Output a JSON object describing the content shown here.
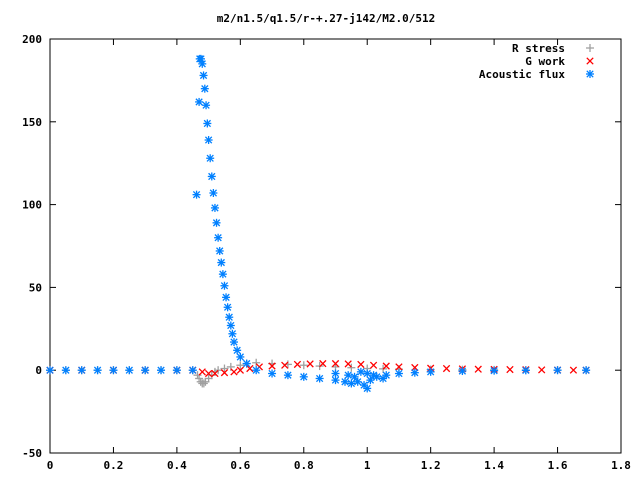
{
  "chart_data": {
    "type": "scatter",
    "title": "m2/n1.5/q1.5/r-+.27-j142/M2.0/512",
    "xlabel": "",
    "ylabel": "",
    "xlim": [
      0,
      1.8
    ],
    "ylim": [
      -50,
      200
    ],
    "xticks": [
      "0",
      "0.2",
      "0.4",
      "0.6",
      "0.8",
      "1",
      "1.2",
      "1.4",
      "1.6",
      "1.8"
    ],
    "yticks": [
      "-50",
      "0",
      "50",
      "100",
      "150",
      "200"
    ],
    "grid": false,
    "legend_position": "top-right",
    "series": [
      {
        "name": "R stress",
        "marker": "plus",
        "color": "#a0a0a0",
        "x": [
          0.0,
          0.05,
          0.1,
          0.15,
          0.2,
          0.25,
          0.3,
          0.35,
          0.4,
          0.45,
          0.465,
          0.47,
          0.475,
          0.48,
          0.485,
          0.49,
          0.5,
          0.51,
          0.52,
          0.53,
          0.55,
          0.57,
          0.6,
          0.62,
          0.65,
          0.7,
          0.75,
          0.8,
          0.85,
          0.9,
          0.95,
          1.0,
          1.05,
          1.1,
          1.2,
          1.3,
          1.4,
          1.5,
          1.6,
          1.69
        ],
        "y": [
          0,
          0,
          0,
          0,
          0,
          0,
          0,
          0,
          0,
          0,
          -3,
          -5,
          -7,
          -8,
          -8,
          -7,
          -5,
          -3,
          -1,
          0,
          1,
          2,
          3,
          4,
          4.5,
          4,
          3.5,
          3,
          2.5,
          2,
          1.5,
          1,
          0.8,
          0.6,
          0.4,
          0.3,
          0.2,
          0.1,
          0.05,
          0
        ]
      },
      {
        "name": "G work",
        "marker": "cross",
        "color": "#ff0000",
        "x": [
          0.0,
          0.1,
          0.2,
          0.3,
          0.4,
          0.45,
          0.48,
          0.5,
          0.52,
          0.55,
          0.58,
          0.6,
          0.63,
          0.66,
          0.7,
          0.74,
          0.78,
          0.82,
          0.86,
          0.9,
          0.94,
          0.98,
          1.02,
          1.06,
          1.1,
          1.15,
          1.2,
          1.25,
          1.3,
          1.35,
          1.4,
          1.45,
          1.5,
          1.55,
          1.6,
          1.65,
          1.69
        ],
        "y": [
          0,
          0,
          0,
          0,
          0,
          0,
          -1,
          -2,
          -2,
          -1.5,
          -1,
          0,
          1,
          2,
          2.5,
          3,
          3.5,
          3.8,
          4,
          4,
          3.8,
          3.5,
          3,
          2.5,
          2,
          1.6,
          1.2,
          1,
          0.8,
          0.6,
          0.5,
          0.4,
          0.3,
          0.2,
          0.1,
          0.05,
          0
        ]
      },
      {
        "name": "Acoustic flux",
        "marker": "star",
        "color": "#0080ff",
        "x": [
          0.0,
          0.05,
          0.1,
          0.15,
          0.2,
          0.25,
          0.3,
          0.35,
          0.4,
          0.45,
          0.462,
          0.47,
          0.472,
          0.476,
          0.48,
          0.484,
          0.488,
          0.492,
          0.496,
          0.5,
          0.505,
          0.51,
          0.515,
          0.52,
          0.525,
          0.53,
          0.535,
          0.54,
          0.545,
          0.55,
          0.555,
          0.56,
          0.565,
          0.57,
          0.575,
          0.58,
          0.59,
          0.6,
          0.62,
          0.65,
          0.7,
          0.75,
          0.8,
          0.85,
          0.9,
          0.93,
          0.95,
          0.97,
          0.99,
          1.0,
          1.01,
          1.03,
          1.06,
          1.1,
          1.15,
          1.2,
          1.3,
          1.4,
          1.5,
          1.6,
          1.69,
          0.9,
          0.94,
          0.96,
          0.98,
          1.0,
          1.02,
          1.05
        ],
        "y": [
          0,
          0,
          0,
          0,
          0,
          0,
          0,
          0,
          0,
          0,
          106,
          162,
          188,
          188,
          185,
          178,
          170,
          160,
          149,
          139,
          128,
          117,
          107,
          98,
          89,
          80,
          72,
          65,
          58,
          51,
          44,
          38,
          32,
          27,
          22,
          17,
          12,
          8,
          4,
          0,
          -2,
          -3,
          -4,
          -5,
          -6,
          -7,
          -8,
          -7,
          -9,
          -11,
          -6,
          -4,
          -3,
          -2,
          -1.5,
          -1,
          -0.5,
          -0.3,
          -0.1,
          0,
          0,
          -2,
          -3,
          -4,
          -1,
          -2,
          -3,
          -5
        ]
      }
    ]
  }
}
